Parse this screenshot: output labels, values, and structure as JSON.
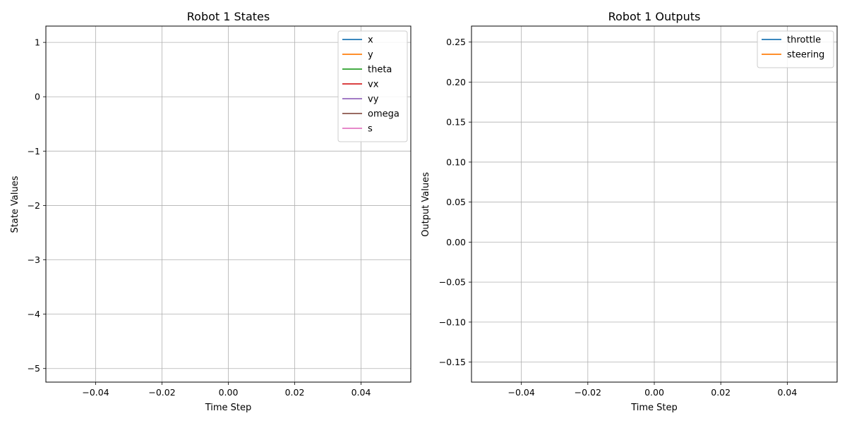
{
  "chart_data": [
    {
      "type": "line",
      "title": "Robot 1 States",
      "xlabel": "Time Step",
      "ylabel": "State Values",
      "xlim": [
        -0.055,
        0.055
      ],
      "ylim": [
        -5.25,
        1.3
      ],
      "xticks": [
        -0.04,
        -0.02,
        0.0,
        0.02,
        0.04
      ],
      "xtick_labels": [
        "−0.04",
        "−0.02",
        "0.00",
        "0.02",
        "0.04"
      ],
      "yticks": [
        -5,
        -4,
        -3,
        -2,
        -1,
        0,
        1
      ],
      "ytick_labels": [
        "−5",
        "−4",
        "−3",
        "−2",
        "−1",
        "0",
        "1"
      ],
      "grid": true,
      "legend_position": "top-right",
      "series": [
        {
          "name": "x",
          "color": "#1f77b4",
          "x": [],
          "y": []
        },
        {
          "name": "y",
          "color": "#ff7f0e",
          "x": [],
          "y": []
        },
        {
          "name": "theta",
          "color": "#2ca02c",
          "x": [],
          "y": []
        },
        {
          "name": "vx",
          "color": "#d62728",
          "x": [],
          "y": []
        },
        {
          "name": "vy",
          "color": "#9467bd",
          "x": [],
          "y": []
        },
        {
          "name": "omega",
          "color": "#8c564b",
          "x": [],
          "y": []
        },
        {
          "name": "s",
          "color": "#e377c2",
          "x": [],
          "y": []
        }
      ]
    },
    {
      "type": "line",
      "title": "Robot 1 Outputs",
      "xlabel": "Time Step",
      "ylabel": "Output Values",
      "xlim": [
        -0.055,
        0.055
      ],
      "ylim": [
        -0.175,
        0.27
      ],
      "xticks": [
        -0.04,
        -0.02,
        0.0,
        0.02,
        0.04
      ],
      "xtick_labels": [
        "−0.04",
        "−0.02",
        "0.00",
        "0.02",
        "0.04"
      ],
      "yticks": [
        -0.15,
        -0.1,
        -0.05,
        0.0,
        0.05,
        0.1,
        0.15,
        0.2,
        0.25
      ],
      "ytick_labels": [
        "−0.15",
        "−0.10",
        "−0.05",
        "0.00",
        "0.05",
        "0.10",
        "0.15",
        "0.20",
        "0.25"
      ],
      "grid": true,
      "legend_position": "top-right",
      "series": [
        {
          "name": "throttle",
          "color": "#1f77b4",
          "x": [],
          "y": []
        },
        {
          "name": "steering",
          "color": "#ff7f0e",
          "x": [],
          "y": []
        }
      ]
    }
  ]
}
